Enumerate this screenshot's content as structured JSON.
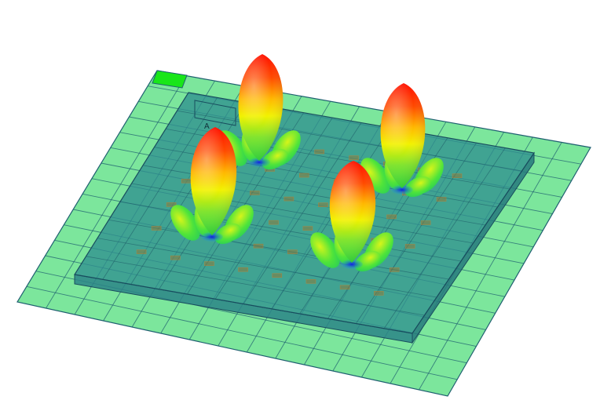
{
  "scene": {
    "label_text": "A",
    "colors": {
      "ground_plane": "#66e08a",
      "ground_grid": "#1f5f70",
      "substrate": "#2e8c8c",
      "substrate_edge": "#184c5e",
      "accent_tile": "#19e619",
      "pattern_top": "#ff0a00",
      "pattern_mid": "#f6f000",
      "pattern_low": "#39e339",
      "pattern_base": "#1a32d8"
    },
    "patterns": [
      {
        "name": "beam-top-left"
      },
      {
        "name": "beam-bottom-left"
      },
      {
        "name": "beam-top-right"
      },
      {
        "name": "beam-bottom-right"
      }
    ]
  }
}
